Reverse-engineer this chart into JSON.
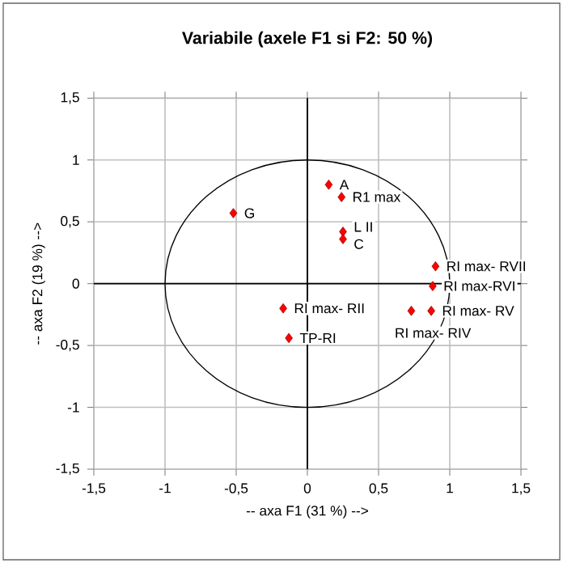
{
  "chart_data": {
    "type": "scatter",
    "title": "Variabile (axele F1 si F2: 50 %)",
    "xlabel": "-- axa F1 (31 %) -->",
    "ylabel": "-- axa F2 (19 %) -->",
    "xlim": [
      -1.5,
      1.5
    ],
    "ylim": [
      -1.5,
      1.5
    ],
    "xticks": [
      {
        "value": -1.5,
        "label": "-1,5"
      },
      -1,
      {
        "value": -0.5,
        "label": "-0,5"
      },
      0,
      {
        "value": 0.5,
        "label": "0,5"
      },
      1,
      {
        "value": 1.5,
        "label": "1,5"
      }
    ],
    "yticks": [
      {
        "value": -1.5,
        "label": "-1,5"
      },
      -1,
      {
        "value": -0.5,
        "label": "-0,5"
      },
      0,
      {
        "value": 0.5,
        "label": "0,5"
      },
      1,
      {
        "value": 1.5,
        "label": "1,5"
      }
    ],
    "grid": true,
    "series": [
      {
        "type": "scatter",
        "color": "#ff0000",
        "marker": "diamond",
        "x": [
          0.15,
          0.24,
          -0.52,
          0.25,
          0.25,
          0.9,
          0.88,
          0.87,
          0.73,
          -0.17,
          -0.13
        ],
        "values": [
          0.8,
          0.7,
          0.57,
          0.42,
          0.36,
          0.14,
          -0.02,
          -0.22,
          -0.22,
          -0.2,
          -0.44
        ]
      }
    ],
    "annotations": [
      {
        "text": "A",
        "x": 0.15,
        "y": 0.8
      },
      {
        "text": "R1 max",
        "x": 0.24,
        "y": 0.7
      },
      {
        "text": "G",
        "x": -0.52,
        "y": 0.57
      },
      {
        "text": "L II",
        "x": 0.25,
        "y": 0.42
      },
      {
        "text": "C",
        "x": 0.25,
        "y": 0.36
      },
      {
        "text": "RI max- RVII",
        "x": 0.9,
        "y": 0.14
      },
      {
        "text": "RI max-RVI",
        "x": 0.88,
        "y": -0.02
      },
      {
        "text": "RI max- RV",
        "x": 0.87,
        "y": -0.22
      },
      {
        "text": "RI max- RIV",
        "x": 0.73,
        "y": -0.22
      },
      {
        "text": "RI max- RII",
        "x": -0.17,
        "y": -0.2
      },
      {
        "text": "TP-RI",
        "x": -0.13,
        "y": -0.44
      }
    ]
  }
}
